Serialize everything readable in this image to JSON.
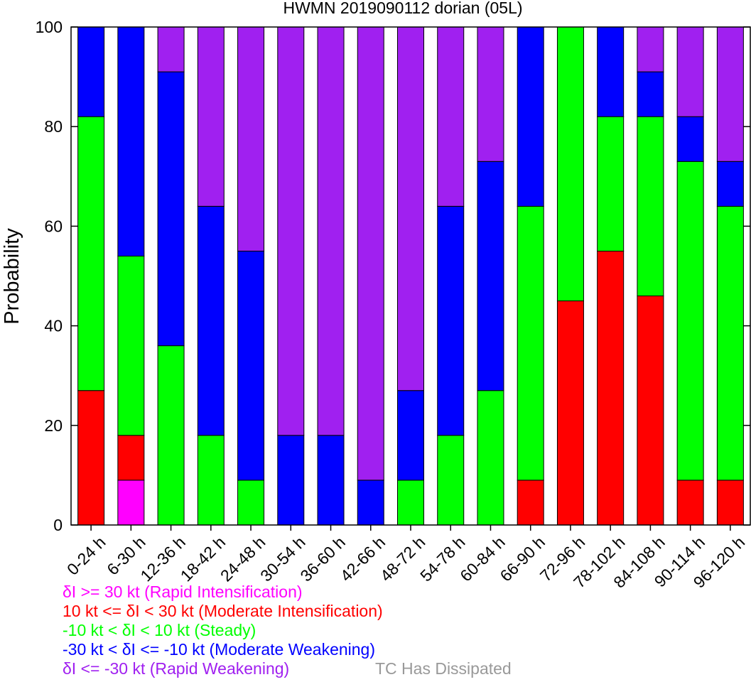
{
  "chart_data": {
    "type": "bar",
    "stacked": true,
    "title": "HWMN 2019090112 dorian (05L)",
    "ylabel": "Probability",
    "xlabel": "",
    "ylim": [
      0,
      100
    ],
    "yticks": [
      0,
      20,
      40,
      60,
      80,
      100
    ],
    "grid": false,
    "categories": [
      "0-24 h",
      "6-30 h",
      "12-36 h",
      "18-42 h",
      "24-48 h",
      "30-54 h",
      "36-60 h",
      "42-66 h",
      "48-72 h",
      "54-78 h",
      "60-84 h",
      "66-90 h",
      "72-96 h",
      "78-102 h",
      "84-108 h",
      "90-114 h",
      "96-120 h"
    ],
    "series": [
      {
        "name": "δI >= 30 kt (Rapid Intensification)",
        "color": "#ff00ff",
        "values": [
          0,
          9,
          0,
          0,
          0,
          0,
          0,
          0,
          0,
          0,
          0,
          0,
          0,
          0,
          0,
          0,
          0
        ]
      },
      {
        "name": "10 kt <= δI < 30 kt (Moderate Intensification)",
        "color": "#ff0000",
        "values": [
          27,
          9,
          0,
          0,
          0,
          0,
          0,
          0,
          0,
          0,
          0,
          9,
          45,
          55,
          46,
          9,
          9
        ]
      },
      {
        "name": "-10 kt < δI < 10 kt (Steady)",
        "color": "#00ff00",
        "values": [
          55,
          36,
          36,
          18,
          9,
          0,
          0,
          0,
          9,
          18,
          27,
          55,
          55,
          27,
          36,
          64,
          55
        ]
      },
      {
        "name": "-30 kt < δI <= -10 kt (Moderate Weakening)",
        "color": "#0000ff",
        "values": [
          18,
          46,
          55,
          46,
          46,
          18,
          18,
          9,
          18,
          46,
          46,
          36,
          0,
          18,
          9,
          9,
          9
        ]
      },
      {
        "name": "δI <= -30 kt (Rapid Weakening)",
        "color": "#a020f0",
        "values": [
          0,
          0,
          9,
          36,
          45,
          82,
          82,
          91,
          73,
          36,
          27,
          0,
          0,
          0,
          9,
          18,
          27
        ]
      }
    ],
    "dissipated_label": "TC Has Dissipated",
    "dissipated_color": "#999999",
    "legend_placement": "bottom-left"
  }
}
